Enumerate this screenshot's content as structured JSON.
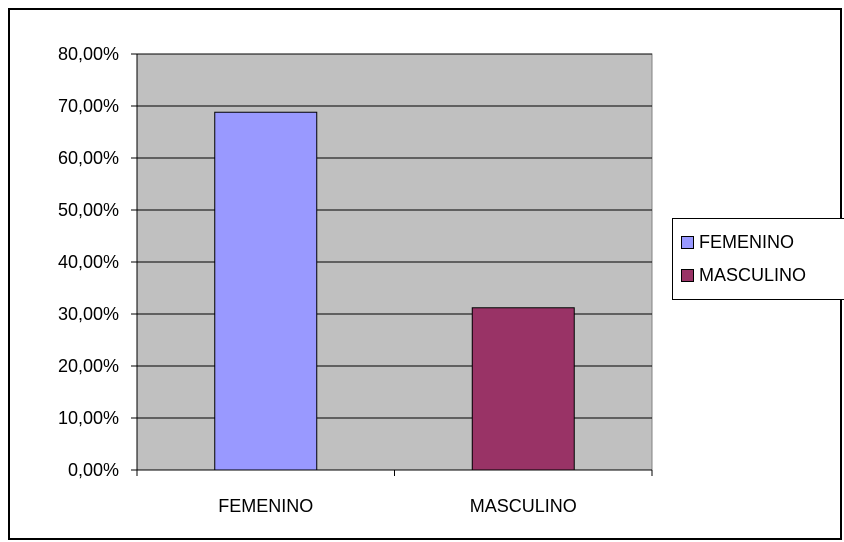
{
  "chart_data": {
    "type": "bar",
    "categories": [
      "FEMENINO",
      "MASCULINO"
    ],
    "values": [
      68.8,
      31.2
    ],
    "unit": "%",
    "ylim": [
      0,
      80
    ],
    "yticks": [
      0,
      10,
      20,
      30,
      40,
      50,
      60,
      70,
      80
    ],
    "ytick_labels": [
      "0,00%",
      "10,00%",
      "20,00%",
      "30,00%",
      "40,00%",
      "50,00%",
      "60,00%",
      "70,00%",
      "80,00%"
    ],
    "grid": true,
    "plot_background": "#c0c0c0",
    "bar_colors": [
      "#9999ff",
      "#993366"
    ],
    "legend": {
      "placement": "right",
      "entries": [
        "FEMENINO",
        "MASCULINO"
      ]
    },
    "title": "",
    "xlabel": "",
    "ylabel": ""
  }
}
